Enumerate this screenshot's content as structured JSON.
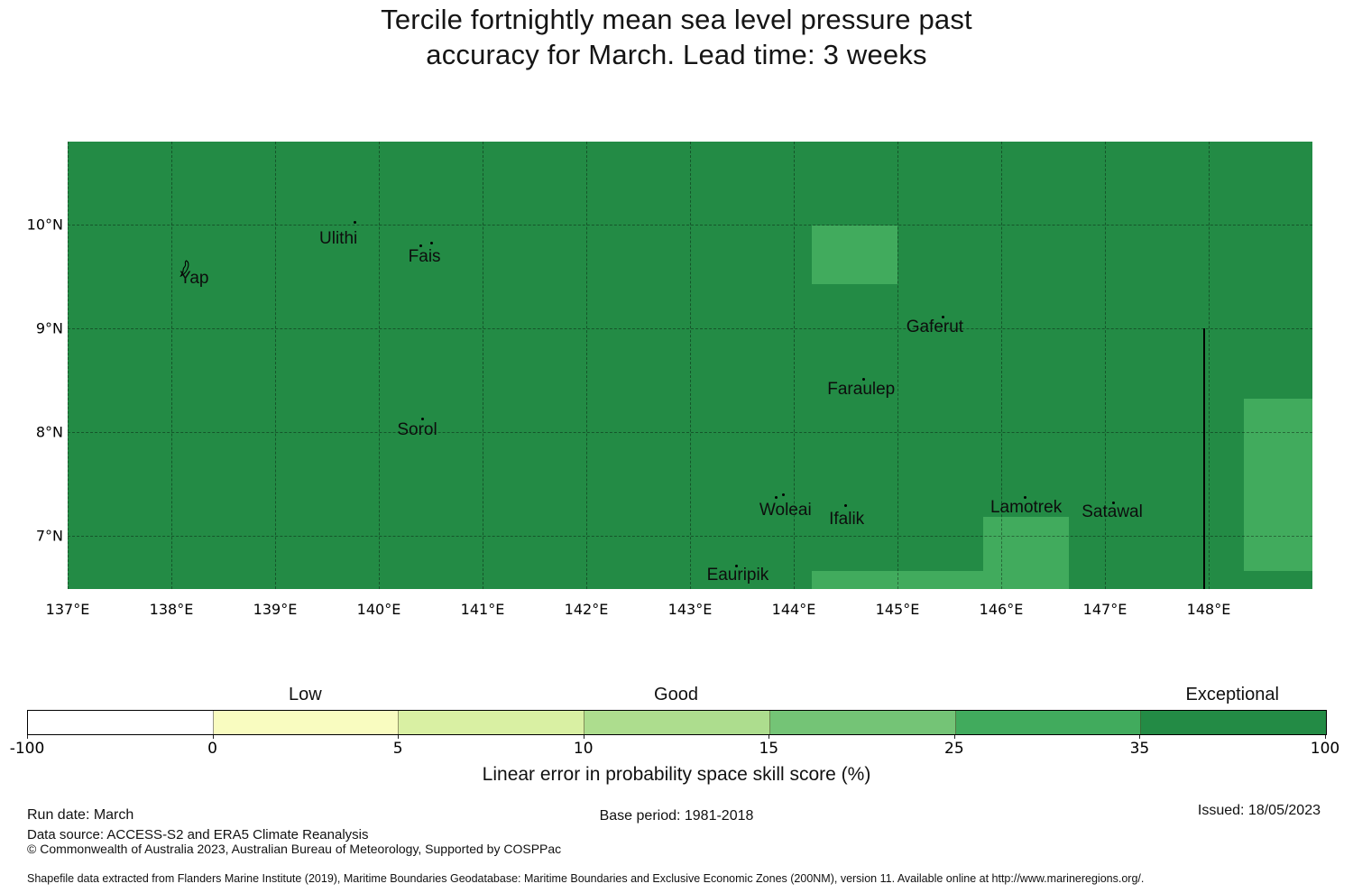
{
  "title": {
    "line1": "Tercile fortnightly mean sea level pressure past",
    "line2": "accuracy for March. Lead time: 3 weeks"
  },
  "map": {
    "bg_color": "#238b45",
    "patch_color": "#41ab5d",
    "gridline_color": "rgba(0,0,0,0.38)",
    "geo": {
      "lon_min": 137.0,
      "lon_max": 149.0,
      "lat_min": 6.487,
      "lat_max": 10.8
    },
    "x_ticks": [
      {
        "label": "137°E",
        "lon": 137
      },
      {
        "label": "138°E",
        "lon": 138
      },
      {
        "label": "139°E",
        "lon": 139
      },
      {
        "label": "140°E",
        "lon": 140
      },
      {
        "label": "141°E",
        "lon": 141
      },
      {
        "label": "142°E",
        "lon": 142
      },
      {
        "label": "143°E",
        "lon": 143
      },
      {
        "label": "144°E",
        "lon": 144
      },
      {
        "label": "145°E",
        "lon": 145
      },
      {
        "label": "146°E",
        "lon": 146
      },
      {
        "label": "147°E",
        "lon": 147
      },
      {
        "label": "148°E",
        "lon": 148
      }
    ],
    "y_ticks": [
      {
        "label": "10°N",
        "lat": 10
      },
      {
        "label": "9°N",
        "lat": 9
      },
      {
        "label": "8°N",
        "lat": 8
      },
      {
        "label": "7°N",
        "lat": 7
      }
    ],
    "patches": [
      {
        "lon1": 144.17,
        "lon2": 145.0,
        "lat1": 9.43,
        "lat2": 9.99
      },
      {
        "lon1": 144.17,
        "lon2": 145.83,
        "lat1": 6.487,
        "lat2": 6.66
      },
      {
        "lon1": 145.83,
        "lon2": 146.65,
        "lat1": 6.487,
        "lat2": 7.18
      },
      {
        "lon1": 148.34,
        "lon2": 149.0,
        "lat1": 6.66,
        "lat2": 8.32
      }
    ],
    "boundary_line": {
      "lon": 147.96,
      "lat1": 6.487,
      "lat2": 9.0
    },
    "places": [
      {
        "name": "Ulithi",
        "lon": 139.61,
        "lat": 9.86
      },
      {
        "name": "Fais",
        "lon": 140.44,
        "lat": 9.69
      },
      {
        "name": "Yap",
        "lon": 138.22,
        "lat": 9.48
      },
      {
        "name": "Gaferut",
        "lon": 145.36,
        "lat": 9.01
      },
      {
        "name": "Faraulep",
        "lon": 144.65,
        "lat": 8.41
      },
      {
        "name": "Sorol",
        "lon": 140.37,
        "lat": 8.02
      },
      {
        "name": "Woleai",
        "lon": 143.92,
        "lat": 7.24
      },
      {
        "name": "Ifalik",
        "lon": 144.51,
        "lat": 7.16
      },
      {
        "name": "Lamotrek",
        "lon": 146.24,
        "lat": 7.27
      },
      {
        "name": "Satawal",
        "lon": 147.07,
        "lat": 7.23
      },
      {
        "name": "Eauripik",
        "lon": 143.46,
        "lat": 6.62
      }
    ],
    "islets": [
      {
        "lon": 139.77,
        "lat": 10.02
      },
      {
        "lon": 140.4,
        "lat": 9.8
      },
      {
        "lon": 140.51,
        "lat": 9.82
      },
      {
        "lon": 145.44,
        "lat": 9.11
      },
      {
        "lon": 144.67,
        "lat": 8.51
      },
      {
        "lon": 140.42,
        "lat": 8.13
      },
      {
        "lon": 143.83,
        "lat": 7.37
      },
      {
        "lon": 143.9,
        "lat": 7.4
      },
      {
        "lon": 144.5,
        "lat": 7.29
      },
      {
        "lon": 146.23,
        "lat": 7.37
      },
      {
        "lon": 147.08,
        "lat": 7.32
      },
      {
        "lon": 143.45,
        "lat": 6.71
      }
    ],
    "yap_island": {
      "lon": 138.13,
      "lat": 9.56
    }
  },
  "colorbar": {
    "segments": [
      "#ffffff",
      "#f9fcc0",
      "#d9f0a3",
      "#addd8e",
      "#74c476",
      "#41ab5d",
      "#238b45"
    ],
    "ticks": [
      "-100",
      "0",
      "5",
      "10",
      "15",
      "25",
      "35",
      "100"
    ],
    "categories": [
      {
        "label": "Low",
        "segment": 1
      },
      {
        "label": "Good",
        "segment": 3
      },
      {
        "label": "Exceptional",
        "segment": 6
      }
    ],
    "caption": "Linear error in probability space skill score (%)"
  },
  "footer": {
    "run_date": "Run date: March",
    "base_period": "Base period: 1981-2018",
    "issued": "Issued: 18/05/2023",
    "data_source": "Data source: ACCESS-S2 and ERA5 Climate Reanalysis",
    "copyright": "© Commonwealth of Australia 2023, Australian Bureau of Meteorology, Supported by COSPPac",
    "shapefile": "Shapefile data extracted from Flanders Marine Institute (2019), Maritime Boundaries Geodatabase: Maritime Boundaries and Exclusive Economic Zones (200NM), version 11. Available online at http://www.marineregions.org/."
  },
  "chart_data": {
    "type": "heatmap",
    "title": "Tercile fortnightly mean sea level pressure past accuracy for March. Lead time: 3 weeks",
    "x_tick_labels": [
      "137°E",
      "138°E",
      "139°E",
      "140°E",
      "141°E",
      "142°E",
      "143°E",
      "144°E",
      "145°E",
      "146°E",
      "147°E",
      "148°E"
    ],
    "y_tick_labels": [
      "7°N",
      "8°N",
      "9°N",
      "10°N"
    ],
    "lon_range": [
      137,
      149
    ],
    "lat_range": [
      6.5,
      10.8
    ],
    "grid": true,
    "colorbar": {
      "label": "Linear error in probability space skill score (%)",
      "tick_values": [
        -100,
        0,
        5,
        10,
        15,
        25,
        35,
        100
      ],
      "bin_colors": [
        "#ffffff",
        "#f9fcc0",
        "#d9f0a3",
        "#addd8e",
        "#74c476",
        "#41ab5d",
        "#238b45"
      ],
      "category_labels": {
        "Low": "0 to 5",
        "Good": "10 to 15",
        "Exceptional": "35 to 100"
      }
    },
    "regions": [
      {
        "area": "entire map background",
        "value_bin": "35-100",
        "category": "Exceptional",
        "color": "#238b45"
      },
      {
        "area": "144.2E-145.0E, 9.4N-10.0N",
        "value_bin": "25-35",
        "color": "#41ab5d"
      },
      {
        "area": "144.2E-145.8E, 6.5N-6.7N",
        "value_bin": "25-35",
        "color": "#41ab5d"
      },
      {
        "area": "145.8E-146.7E, 6.5N-7.2N",
        "value_bin": "25-35",
        "color": "#41ab5d"
      },
      {
        "area": "148.3E-149.0E, 6.7N-8.3N",
        "value_bin": "25-35",
        "color": "#41ab5d"
      }
    ],
    "boundary_line": "EEZ boundary drawn as vertical black line at ~148°E from 6.5N to 9N",
    "labelled_places": [
      "Yap",
      "Ulithi",
      "Fais",
      "Sorol",
      "Gaferut",
      "Faraulep",
      "Woleai",
      "Ifalik",
      "Lamotrek",
      "Satawal",
      "Eauripik"
    ]
  }
}
